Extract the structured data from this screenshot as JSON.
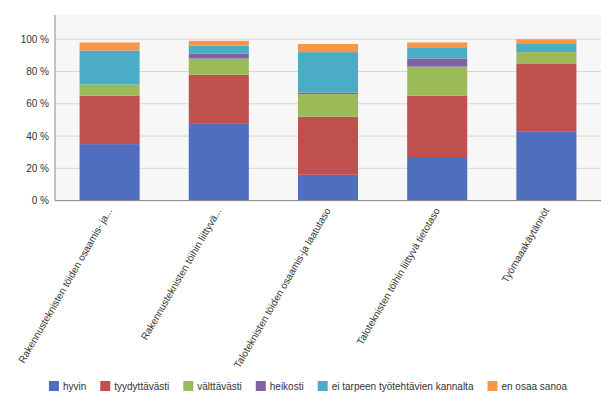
{
  "chart_data": {
    "type": "bar",
    "stacked": true,
    "categories": [
      "Rakennusteknisten töiden osaamis- ja...",
      "Rakennusteknisten töihin liittyvä...",
      "Taloteknisten töiden osaamis-ja laatutaso",
      "Taloteknisten töihin liittyvä tietotaso",
      "Työmaaakäytännöt"
    ],
    "series": [
      {
        "name": "hyvin",
        "color": "#4F6EBE",
        "values": [
          35,
          48,
          16,
          27,
          43
        ]
      },
      {
        "name": "tyydyttävästi",
        "color": "#C0504D",
        "values": [
          30,
          30,
          36,
          38,
          42
        ]
      },
      {
        "name": "välttävästi",
        "color": "#9BBB59",
        "values": [
          7,
          10,
          14,
          18,
          7
        ]
      },
      {
        "name": "heikosti",
        "color": "#8064A2",
        "values": [
          0,
          3,
          1,
          5,
          0
        ]
      },
      {
        "name": "ei tarpeen työtehtävien kannalta",
        "color": "#4BACC6",
        "values": [
          21,
          5,
          25,
          7,
          5
        ]
      },
      {
        "name": "en osaa sanoa",
        "color": "#F79646",
        "values": [
          5,
          3,
          5,
          3,
          3
        ]
      }
    ],
    "ylim": [
      0,
      115
    ],
    "yticks": [
      {
        "value": 0,
        "label": "0 %"
      },
      {
        "value": 20,
        "label": "20 %"
      },
      {
        "value": 40,
        "label": "40 %"
      },
      {
        "value": 60,
        "label": "60 %"
      },
      {
        "value": 80,
        "label": "80 %"
      },
      {
        "value": 100,
        "label": "100 %"
      }
    ],
    "grid": true,
    "legend": "bottom"
  }
}
